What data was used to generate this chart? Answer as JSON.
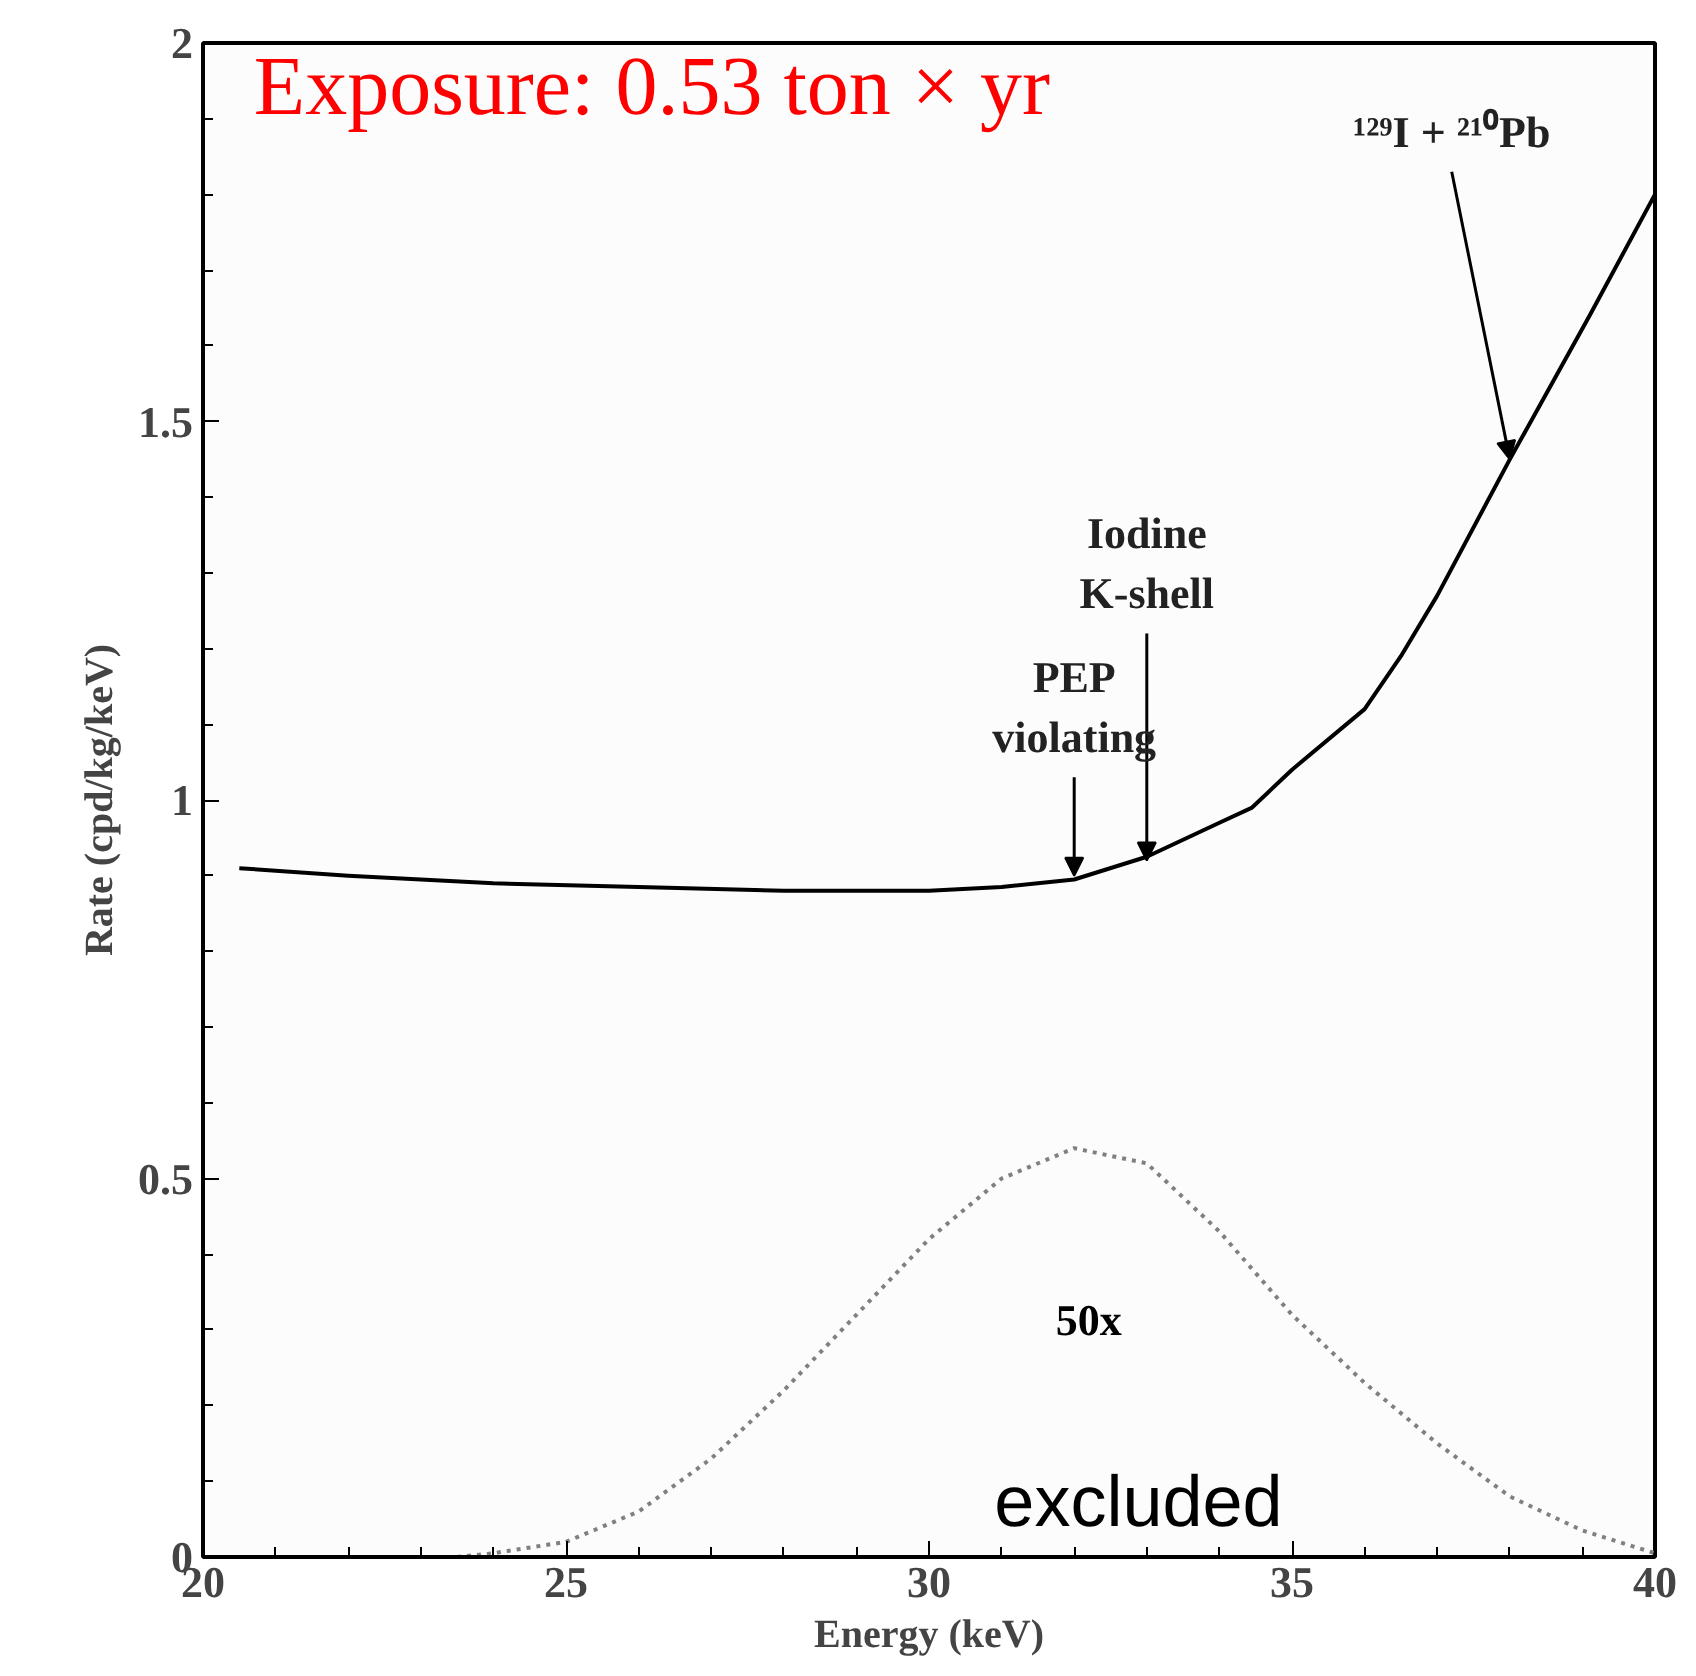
{
  "chart_data": {
    "type": "line",
    "xlabel": "Energy (keV)",
    "ylabel": "Rate (cpd/kg/keV)",
    "xlim": [
      20,
      40
    ],
    "xticks": [
      20,
      25,
      30,
      35,
      40
    ],
    "ylim": [
      0,
      2
    ],
    "yticks": [
      0,
      {
        "value": 0.5,
        "label": "0.5"
      },
      1,
      {
        "value": 1.5,
        "label": "1.5"
      },
      2
    ],
    "grid": false,
    "marker": "none",
    "series": [
      {
        "color": "#000000",
        "line_style": "solid",
        "x": [
          20.5,
          22,
          24,
          26,
          28,
          30,
          31,
          32,
          33,
          34,
          34.45,
          35,
          36,
          36.5,
          37,
          38,
          39.1,
          40
        ],
        "values": [
          0.91,
          0.9,
          0.89,
          0.885,
          0.88,
          0.88,
          0.885,
          0.895,
          0.925,
          0.97,
          0.99,
          1.04,
          1.12,
          1.19,
          1.27,
          1.45,
          1.64,
          1.8
        ]
      },
      {
        "color": "#808080",
        "line_style": "dotted",
        "x": [
          23.5,
          24,
          25,
          26,
          27,
          28,
          29,
          30,
          31,
          32,
          33,
          34,
          35,
          36,
          37,
          38,
          39,
          40
        ],
        "values": [
          0,
          0.005,
          0.02,
          0.06,
          0.13,
          0.22,
          0.32,
          0.42,
          0.5,
          0.54,
          0.52,
          0.43,
          0.32,
          0.23,
          0.15,
          0.08,
          0.035,
          0.005
        ]
      }
    ],
    "annotations": [
      "Exposure: 0.53 ton × yr",
      {
        "text": "¹²⁹I + ²¹⁰Pb",
        "x": 38,
        "y": 1.45
      },
      {
        "text": "Iodine\nK-shell",
        "x": 33,
        "y": 0.92
      },
      {
        "text": "PEP\nviolating",
        "x": 32,
        "y": 0.9
      },
      "50x",
      "excluded"
    ]
  }
}
